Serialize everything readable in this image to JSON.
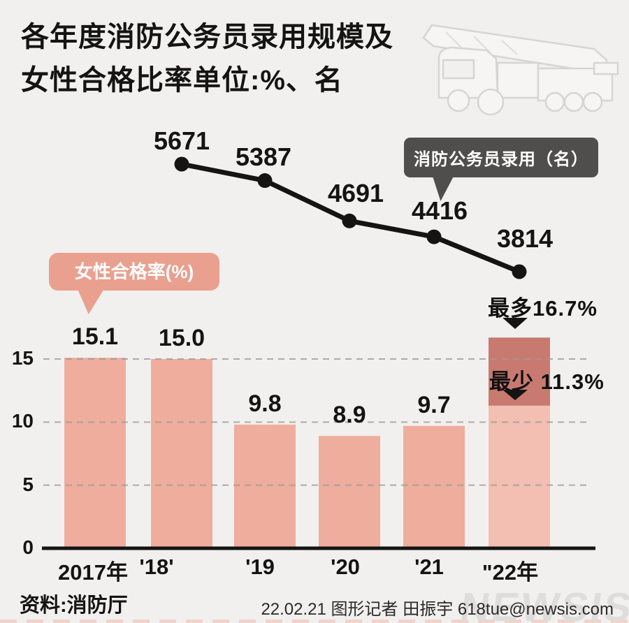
{
  "title": {
    "line1": "各年度消防公务员录用规模及",
    "line2": "女性合格比率单位:%、名"
  },
  "chart_data": {
    "type": "combo",
    "title": "各年度消防公务员录用规模及女性合格比率",
    "units": "%、名",
    "categories": [
      "2017年",
      "'18'",
      "'19",
      "'20",
      "'21",
      "\"22年"
    ],
    "line": {
      "name": "消防公务员录用（名）",
      "applies_to_categories": [
        "'18'",
        "'19",
        "'20",
        "'21",
        "\"22年"
      ],
      "values": [
        5671,
        5387,
        4691,
        4416,
        3814
      ]
    },
    "bars": {
      "name": "女性合格率(%)",
      "values": [
        15.1,
        15.0,
        9.8,
        8.9,
        9.7,
        null
      ],
      "final_bar": {
        "category": "\"22年",
        "max": 16.7,
        "min": 11.3
      }
    },
    "yaxis": {
      "ticks": [
        0,
        5,
        10,
        15
      ],
      "range": [
        0,
        17
      ]
    },
    "grid": true,
    "legend_position": "inline-callouts",
    "annotations": {
      "max": "最多16.7%",
      "min": "最少 11.3%"
    }
  },
  "footer": {
    "source": "资料:消防厅",
    "credit": "22.02.21 图形记者 田振宇 618tue@newsis.com",
    "watermark": "NEWSIS"
  },
  "colors": {
    "background": "#f1f0ee",
    "bar": "#efad9d",
    "bar_final_light": "#f3bfb2",
    "bar_final_dark": "#c97a70",
    "bubble": "#e9a08f",
    "badge": "#4f4e4c",
    "line": "#141414",
    "grid": "#9b9b9b"
  }
}
